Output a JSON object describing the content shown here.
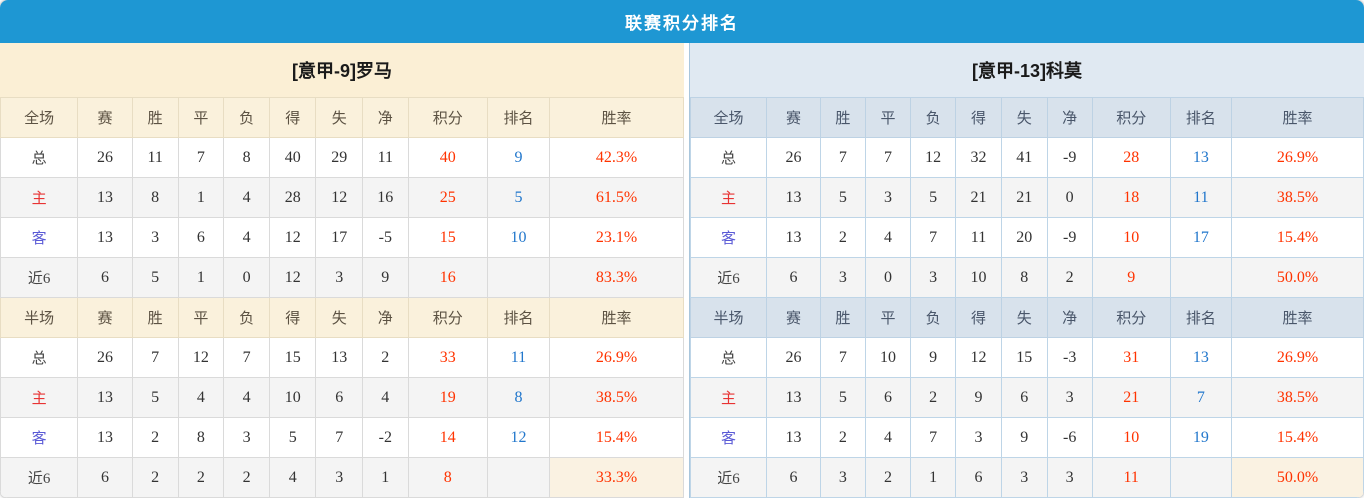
{
  "title": "联赛积分排名",
  "colors": {
    "title_bar": "#1e97d3",
    "left_team_header_bg": "#fbefd5",
    "left_column_header_bg": "#faf1dc",
    "right_team_header_bg": "#e0e9f2",
    "right_column_header_bg": "#d8e2ec",
    "alt_row_bg": "#f4f4f4",
    "points_text": "#ff3300",
    "rank_text": "#2277cc",
    "rate_text": "#ff3300",
    "home_label_text": "#e83333",
    "away_label_text": "#5a5ad6"
  },
  "columns_full": [
    "全场",
    "赛",
    "胜",
    "平",
    "负",
    "得",
    "失",
    "净",
    "积分",
    "排名",
    "胜率"
  ],
  "columns_half": [
    "半场",
    "赛",
    "胜",
    "平",
    "负",
    "得",
    "失",
    "净",
    "积分",
    "排名",
    "胜率"
  ],
  "teams": [
    {
      "name": "[意甲-9]罗马",
      "full": [
        {
          "label": "总",
          "values": [
            26,
            11,
            7,
            8,
            40,
            29,
            11
          ],
          "points": 40,
          "rank": "9",
          "rate": "42.3%"
        },
        {
          "label": "主",
          "values": [
            13,
            8,
            1,
            4,
            28,
            12,
            16
          ],
          "points": 25,
          "rank": "5",
          "rate": "61.5%"
        },
        {
          "label": "客",
          "values": [
            13,
            3,
            6,
            4,
            12,
            17,
            -5
          ],
          "points": 15,
          "rank": "10",
          "rate": "23.1%"
        },
        {
          "label": "近6",
          "values": [
            6,
            5,
            1,
            0,
            12,
            3,
            9
          ],
          "points": 16,
          "rank": "",
          "rate": "83.3%"
        }
      ],
      "half": [
        {
          "label": "总",
          "values": [
            26,
            7,
            12,
            7,
            15,
            13,
            2
          ],
          "points": 33,
          "rank": "11",
          "rate": "26.9%"
        },
        {
          "label": "主",
          "values": [
            13,
            5,
            4,
            4,
            10,
            6,
            4
          ],
          "points": 19,
          "rank": "8",
          "rate": "38.5%"
        },
        {
          "label": "客",
          "values": [
            13,
            2,
            8,
            3,
            5,
            7,
            -2
          ],
          "points": 14,
          "rank": "12",
          "rate": "15.4%"
        },
        {
          "label": "近6",
          "values": [
            6,
            2,
            2,
            2,
            4,
            3,
            1
          ],
          "points": 8,
          "rank": "",
          "rate": "33.3%"
        }
      ]
    },
    {
      "name": "[意甲-13]科莫",
      "full": [
        {
          "label": "总",
          "values": [
            26,
            7,
            7,
            12,
            32,
            41,
            -9
          ],
          "points": 28,
          "rank": "13",
          "rate": "26.9%"
        },
        {
          "label": "主",
          "values": [
            13,
            5,
            3,
            5,
            21,
            21,
            0
          ],
          "points": 18,
          "rank": "11",
          "rate": "38.5%"
        },
        {
          "label": "客",
          "values": [
            13,
            2,
            4,
            7,
            11,
            20,
            -9
          ],
          "points": 10,
          "rank": "17",
          "rate": "15.4%"
        },
        {
          "label": "近6",
          "values": [
            6,
            3,
            0,
            3,
            10,
            8,
            2
          ],
          "points": 9,
          "rank": "",
          "rate": "50.0%"
        }
      ],
      "half": [
        {
          "label": "总",
          "values": [
            26,
            7,
            10,
            9,
            12,
            15,
            -3
          ],
          "points": 31,
          "rank": "13",
          "rate": "26.9%"
        },
        {
          "label": "主",
          "values": [
            13,
            5,
            6,
            2,
            9,
            6,
            3
          ],
          "points": 21,
          "rank": "7",
          "rate": "38.5%"
        },
        {
          "label": "客",
          "values": [
            13,
            2,
            4,
            7,
            3,
            9,
            -6
          ],
          "points": 10,
          "rank": "19",
          "rate": "15.4%"
        },
        {
          "label": "近6",
          "values": [
            6,
            3,
            2,
            1,
            6,
            3,
            3
          ],
          "points": 11,
          "rank": "",
          "rate": "50.0%"
        }
      ]
    }
  ]
}
